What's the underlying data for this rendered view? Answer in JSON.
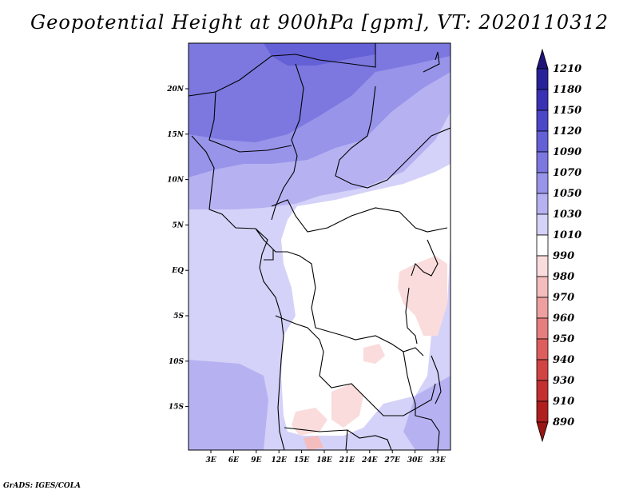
{
  "title": "Geopotential Height at 900hPa [gpm], VT: 2020110312",
  "footer": "GrADS: IGES/COLA",
  "map": {
    "lon_labels": [
      "3E",
      "6E",
      "9E",
      "12E",
      "15E",
      "18E",
      "21E",
      "24E",
      "27E",
      "30E",
      "33E"
    ],
    "lat_labels": [
      "20N",
      "15N",
      "10N",
      "5N",
      "EQ",
      "5S",
      "10S",
      "15S"
    ]
  },
  "colorbar": {
    "labels": [
      "1210",
      "1180",
      "1150",
      "1120",
      "1090",
      "1070",
      "1050",
      "1030",
      "1010",
      "990",
      "980",
      "970",
      "960",
      "950",
      "940",
      "930",
      "910",
      "890"
    ],
    "colors": [
      "#1e1478",
      "#28229a",
      "#3a32b4",
      "#4c46c8",
      "#6460d6",
      "#7c78e0",
      "#9894ea",
      "#b6b2f2",
      "#d4d2f8",
      "#ffffff",
      "#fadcdc",
      "#f4bcbc",
      "#eea0a0",
      "#e67e7e",
      "#de5e5e",
      "#d24444",
      "#c43030",
      "#b01e1e",
      "#9a1414"
    ]
  }
}
